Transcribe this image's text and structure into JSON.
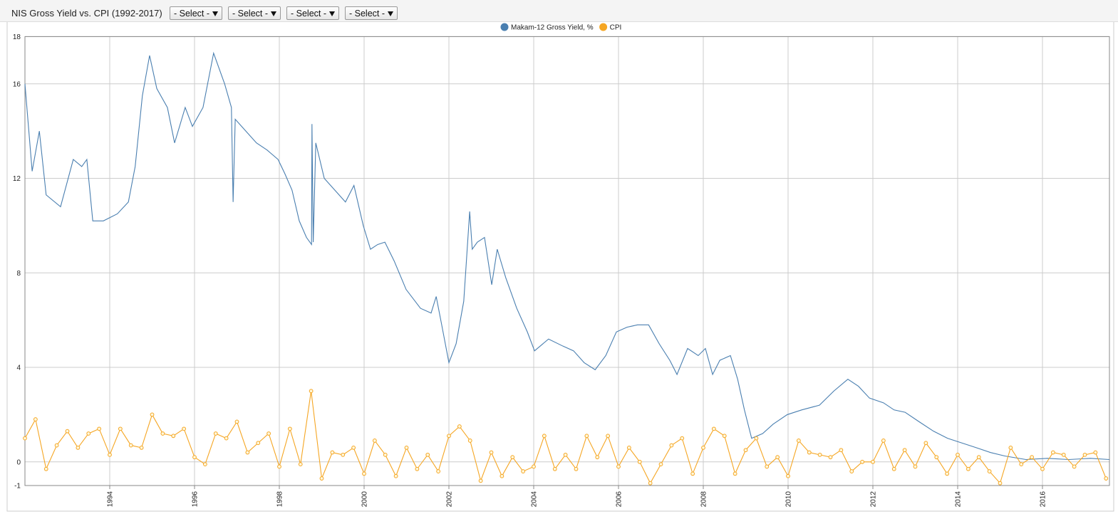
{
  "toolbar": {
    "controls": [
      "- Select -",
      "- Select -",
      "- Select -",
      "- Select -"
    ]
  },
  "chart_data": {
    "type": "line",
    "title": "NIS Gross Yield vs. CPI (1992-2017)",
    "xlim": [
      1992,
      2017.58
    ],
    "xticks": [
      1994,
      1996,
      1998,
      2000,
      2002,
      2004,
      2006,
      2008,
      2010,
      2012,
      2014,
      2016
    ],
    "ylim": [
      -1,
      18
    ],
    "yticks": [
      -1,
      0,
      4,
      8,
      12,
      16,
      18
    ],
    "grid": true,
    "legend": "top",
    "series": [
      {
        "name": "Makam-12 Gross Yield, %",
        "color": "#4a7fb0",
        "markers": false,
        "x": [
          1992.0,
          1992.17,
          1992.34,
          1992.5,
          1992.84,
          1993.14,
          1993.34,
          1993.46,
          1993.6,
          1993.85,
          1994.18,
          1994.44,
          1994.6,
          1994.77,
          1994.94,
          1995.11,
          1995.36,
          1995.53,
          1995.78,
          1995.95,
          1996.2,
          1996.45,
          1996.71,
          1996.87,
          1996.91,
          1996.96,
          1997.21,
          1997.46,
          1997.71,
          1997.97,
          1998.13,
          1998.3,
          1998.47,
          1998.64,
          1998.76,
          1998.77,
          1998.8,
          1998.86,
          1999.06,
          1999.31,
          1999.56,
          1999.76,
          1999.98,
          2000.15,
          2000.32,
          2000.49,
          2000.71,
          2000.99,
          2001.33,
          2001.58,
          2001.7,
          2001.83,
          2002.0,
          2002.17,
          2002.35,
          2002.49,
          2002.55,
          2002.67,
          2002.84,
          2003.01,
          2003.14,
          2003.34,
          2003.6,
          2003.85,
          2004.02,
          2004.35,
          2004.69,
          2004.94,
          2005.19,
          2005.45,
          2005.7,
          2005.95,
          2006.2,
          2006.45,
          2006.71,
          2006.96,
          2007.21,
          2007.38,
          2007.63,
          2007.88,
          2008.05,
          2008.22,
          2008.39,
          2008.64,
          2008.81,
          2008.97,
          2009.14,
          2009.4,
          2009.65,
          2009.98,
          2010.32,
          2010.74,
          2011.08,
          2011.41,
          2011.66,
          2011.92,
          2012.25,
          2012.5,
          2012.76,
          2013.09,
          2013.43,
          2013.76,
          2014.1,
          2014.44,
          2014.77,
          2015.11,
          2015.61,
          2016.12,
          2016.62,
          2017.13,
          2017.58
        ],
        "values": [
          16,
          12.3,
          14,
          11.3,
          10.8,
          12.8,
          12.5,
          12.8,
          10.2,
          10.2,
          10.5,
          11,
          12.5,
          15.5,
          17.2,
          15.8,
          15,
          13.5,
          15,
          14.2,
          15,
          17.3,
          16,
          15,
          11,
          14.5,
          14,
          13.5,
          13.2,
          12.8,
          12.2,
          11.5,
          10.2,
          9.5,
          9.2,
          14.3,
          9.3,
          13.5,
          12,
          11.5,
          11,
          11.7,
          10,
          9,
          9.2,
          9.3,
          8.5,
          7.3,
          6.5,
          6.3,
          7,
          5.8,
          4.2,
          5,
          6.8,
          10.6,
          9,
          9.3,
          9.5,
          7.5,
          9,
          7.8,
          6.5,
          5.5,
          4.7,
          5.2,
          4.9,
          4.7,
          4.2,
          3.9,
          4.5,
          5.5,
          5.7,
          5.8,
          5.8,
          5,
          4.3,
          3.7,
          4.8,
          4.5,
          4.8,
          3.7,
          4.3,
          4.5,
          3.5,
          2.2,
          1,
          1.2,
          1.6,
          2,
          2.2,
          2.4,
          3,
          3.5,
          3.2,
          2.7,
          2.5,
          2.2,
          2.1,
          1.7,
          1.3,
          1,
          0.8,
          0.6,
          0.4,
          0.25,
          0.1,
          0.15,
          0.1,
          0.15,
          0.1
        ]
      },
      {
        "name": "CPI",
        "color": "#f5a623",
        "markers": true,
        "x": [
          1992,
          1992.25,
          1992.5,
          1992.75,
          1993,
          1993.25,
          1993.5,
          1993.75,
          1994,
          1994.25,
          1994.5,
          1994.75,
          1995,
          1995.25,
          1995.5,
          1995.75,
          1996,
          1996.25,
          1996.5,
          1996.75,
          1997,
          1997.25,
          1997.5,
          1997.75,
          1998,
          1998.25,
          1998.5,
          1998.75,
          1999,
          1999.25,
          1999.5,
          1999.75,
          2000,
          2000.25,
          2000.5,
          2000.75,
          2001,
          2001.25,
          2001.5,
          2001.75,
          2002,
          2002.25,
          2002.5,
          2002.75,
          2003,
          2003.25,
          2003.5,
          2003.75,
          2004,
          2004.25,
          2004.5,
          2004.75,
          2005,
          2005.25,
          2005.5,
          2005.75,
          2006,
          2006.25,
          2006.5,
          2006.75,
          2007,
          2007.25,
          2007.5,
          2007.75,
          2008,
          2008.25,
          2008.5,
          2008.75,
          2009,
          2009.25,
          2009.5,
          2009.75,
          2010,
          2010.25,
          2010.5,
          2010.75,
          2011,
          2011.25,
          2011.5,
          2011.75,
          2012,
          2012.25,
          2012.5,
          2012.75,
          2013,
          2013.25,
          2013.5,
          2013.75,
          2014,
          2014.25,
          2014.5,
          2014.75,
          2015,
          2015.25,
          2015.5,
          2015.75,
          2016,
          2016.25,
          2016.5,
          2016.75,
          2017,
          2017.25,
          2017.5
        ],
        "values": [
          1.0,
          1.8,
          -0.3,
          0.7,
          1.3,
          0.6,
          1.2,
          1.4,
          0.3,
          1.4,
          0.7,
          0.6,
          2.0,
          1.2,
          1.1,
          1.4,
          0.2,
          -0.1,
          1.2,
          1.0,
          1.7,
          0.4,
          0.8,
          1.2,
          -0.2,
          1.4,
          -0.1,
          3.0,
          -0.7,
          0.4,
          0.3,
          0.6,
          -0.5,
          0.9,
          0.3,
          -0.6,
          0.6,
          -0.3,
          0.3,
          -0.4,
          1.1,
          1.5,
          0.9,
          -0.8,
          0.4,
          -0.6,
          0.2,
          -0.4,
          -0.2,
          1.1,
          -0.3,
          0.3,
          -0.3,
          1.1,
          0.2,
          1.1,
          -0.2,
          0.6,
          0.0,
          -0.9,
          -0.1,
          0.7,
          1.0,
          -0.5,
          0.6,
          1.4,
          1.1,
          -0.5,
          0.5,
          1.0,
          -0.2,
          0.2,
          -0.6,
          0.9,
          0.4,
          0.3,
          0.2,
          0.5,
          -0.4,
          0.0,
          0.0,
          0.9,
          -0.3,
          0.5,
          -0.2,
          0.8,
          0.2,
          -0.5,
          0.3,
          -0.3,
          0.2,
          -0.4,
          -0.9,
          0.6,
          -0.1,
          0.2,
          -0.3,
          0.4,
          0.3,
          -0.2,
          0.3,
          0.4,
          -0.7
        ]
      }
    ]
  }
}
